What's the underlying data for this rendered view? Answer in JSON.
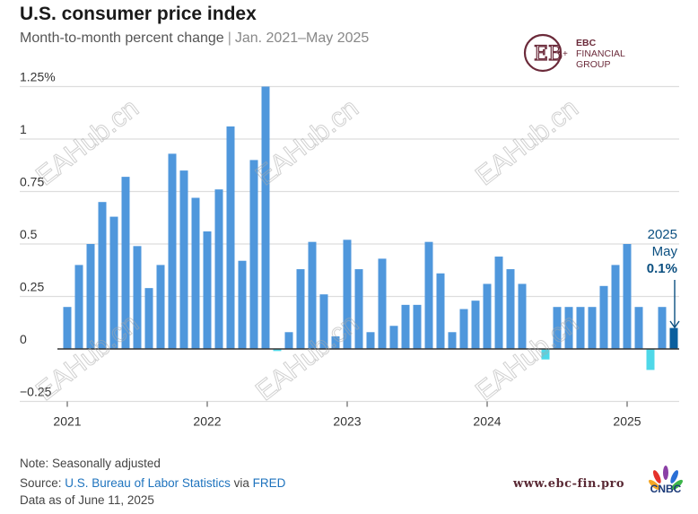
{
  "header": {
    "title": "U.S. consumer price index",
    "subtitle": "Month-to-month percent change",
    "separator": "|",
    "date_range": "Jan. 2021–May 2025"
  },
  "logo": {
    "line1": "EBC",
    "line2": "FINANCIAL",
    "line3": "GROUP"
  },
  "watermark": "EAHub.cn",
  "footer": {
    "note": "Note: Seasonally adjusted",
    "source_prefix": "Source: ",
    "source_link": "U.S. Bureau of Labor Statistics",
    "source_via": " via ",
    "source_link2": "FRED",
    "data_as_of": "Data as of June 11, 2025",
    "website": "www.ebc-fin.pro",
    "brand": "CNBC"
  },
  "colors": {
    "positive": "#4f97dc",
    "negative": "#4fd8e8",
    "highlight": "#0b5f9e",
    "grid": "#dddddd",
    "axis": "#333333"
  },
  "chart_data": {
    "type": "bar",
    "title": "U.S. consumer price index",
    "xlabel": "",
    "ylabel": "Month-to-month percent change",
    "ylim": [
      -0.25,
      1.25
    ],
    "yticks": [
      -0.25,
      0,
      0.25,
      0.5,
      0.75,
      1,
      1.25
    ],
    "ytick_labels": [
      "−0.25",
      "0",
      "0.25",
      "0.5",
      "0.75",
      "1",
      "1.25%"
    ],
    "xtick_labels": [
      "2021",
      "2022",
      "2023",
      "2024",
      "2025"
    ],
    "grid": true,
    "start": "2021-01",
    "values": [
      0.2,
      0.4,
      0.5,
      0.7,
      0.63,
      0.82,
      0.49,
      0.29,
      0.4,
      0.93,
      0.85,
      0.72,
      0.56,
      0.76,
      1.06,
      0.42,
      0.9,
      1.25,
      -0.01,
      0.08,
      0.38,
      0.51,
      0.26,
      0.06,
      0.52,
      0.38,
      0.08,
      0.43,
      0.11,
      0.21,
      0.21,
      0.51,
      0.36,
      0.08,
      0.19,
      0.23,
      0.31,
      0.44,
      0.38,
      0.31,
      0.0,
      -0.05,
      0.2,
      0.2,
      0.2,
      0.2,
      0.3,
      0.4,
      0.5,
      0.2,
      -0.1,
      0.2,
      0.1
    ],
    "annotation": {
      "year": "2025",
      "month": "May",
      "value": "0.1%"
    }
  }
}
